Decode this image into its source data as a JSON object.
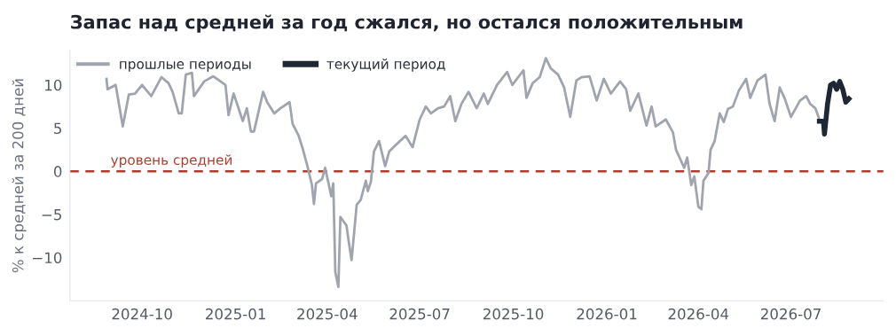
{
  "chart_data": {
    "type": "line",
    "title": "Запас над средней за год сжался, но остался положительным",
    "ylabel": "% к средней за 200 дней",
    "xlim": [
      "2024-07-22",
      "2026-09-30"
    ],
    "ylim": [
      -15,
      14
    ],
    "xticks": [
      "2024-10",
      "2025-01",
      "2025-04",
      "2025-07",
      "2025-10",
      "2026-01",
      "2026-04",
      "2026-07"
    ],
    "yticks": [
      -10,
      -5,
      0,
      5,
      10
    ],
    "grid": false,
    "legend": "top left",
    "ref_lines": [
      {
        "axis": "y",
        "value": 0,
        "label": "уровень средней",
        "color": "#b03a2e",
        "line_style": "dashed"
      }
    ],
    "series": [
      {
        "name": "прошлые периоды",
        "color": "#a0a4ae",
        "x": [
          "2024-08-27",
          "2024-08-28",
          "2024-09-05",
          "2024-09-12",
          "2024-09-18",
          "2024-09-24",
          "2024-10-01",
          "2024-10-10",
          "2024-10-20",
          "2024-10-27",
          "2024-10-31",
          "2024-11-06",
          "2024-11-09",
          "2024-11-13",
          "2024-11-19",
          "2024-11-21",
          "2024-12-01",
          "2024-12-10",
          "2024-12-16",
          "2024-12-22",
          "2024-12-25",
          "2024-12-30",
          "2025-01-08",
          "2025-01-12",
          "2025-01-16",
          "2025-01-19",
          "2025-01-28",
          "2025-02-01",
          "2025-02-08",
          "2025-02-14",
          "2025-02-23",
          "2025-02-26",
          "2025-03-04",
          "2025-03-08",
          "2025-03-13",
          "2025-03-17",
          "2025-03-19",
          "2025-03-21",
          "2025-03-27",
          "2025-03-30",
          "2025-04-02",
          "2025-04-05",
          "2025-04-07",
          "2025-04-09",
          "2025-04-12",
          "2025-04-14",
          "2025-04-20",
          "2025-04-22",
          "2025-04-25",
          "2025-04-30",
          "2025-05-04",
          "2025-05-09",
          "2025-05-11",
          "2025-05-14",
          "2025-05-17",
          "2025-05-22",
          "2025-05-28",
          "2025-06-01",
          "2025-06-08",
          "2025-06-17",
          "2025-06-24",
          "2025-07-01",
          "2025-07-07",
          "2025-07-12",
          "2025-07-19",
          "2025-07-25",
          "2025-07-31",
          "2025-08-05",
          "2025-08-11",
          "2025-08-18",
          "2025-08-26",
          "2025-09-02",
          "2025-09-06",
          "2025-09-15",
          "2025-09-25",
          "2025-09-30",
          "2025-10-11",
          "2025-10-14",
          "2025-10-20",
          "2025-10-27",
          "2025-11-02",
          "2025-11-07",
          "2025-11-14",
          "2025-11-20",
          "2025-11-26",
          "2025-12-02",
          "2025-12-07",
          "2025-12-15",
          "2025-12-22",
          "2025-12-29",
          "2026-01-05",
          "2026-01-14",
          "2026-01-20",
          "2026-01-24",
          "2026-02-01",
          "2026-02-09",
          "2026-02-14",
          "2026-02-18",
          "2026-02-28",
          "2026-03-07",
          "2026-03-10",
          "2026-03-18",
          "2026-03-21",
          "2026-03-25",
          "2026-03-28",
          "2026-04-01",
          "2026-04-04",
          "2026-04-06",
          "2026-04-11",
          "2026-04-13",
          "2026-04-17",
          "2026-04-22",
          "2026-04-26",
          "2026-04-30",
          "2026-05-05",
          "2026-05-11",
          "2026-05-18",
          "2026-05-22",
          "2026-05-29",
          "2026-06-06",
          "2026-06-10",
          "2026-06-15",
          "2026-06-20",
          "2026-06-25",
          "2026-07-01",
          "2026-07-10",
          "2026-07-16",
          "2026-07-20",
          "2026-07-25",
          "2026-07-29"
        ],
        "values": [
          10.7,
          9.5,
          10.0,
          5.2,
          8.9,
          9.0,
          10.0,
          8.7,
          10.9,
          10.2,
          9.2,
          6.7,
          6.7,
          11.2,
          11.4,
          8.7,
          10.4,
          11.0,
          10.5,
          10.0,
          6.5,
          9.0,
          5.8,
          7.3,
          4.6,
          4.6,
          9.2,
          8.0,
          6.7,
          7.3,
          8.0,
          5.5,
          4.1,
          2.6,
          0.4,
          -1.6,
          -3.8,
          -1.4,
          -0.9,
          0.4,
          -1.2,
          -2.9,
          -1.4,
          -11.7,
          -13.4,
          -5.3,
          -6.3,
          -8.0,
          -10.3,
          -3.9,
          -3.3,
          -1.1,
          -2.3,
          -1.2,
          2.3,
          3.5,
          0.6,
          2.3,
          3.1,
          4.1,
          2.8,
          6.0,
          7.5,
          6.7,
          7.3,
          7.5,
          8.7,
          5.8,
          7.8,
          9.2,
          7.3,
          9.0,
          7.8,
          10.0,
          11.5,
          10.0,
          11.7,
          8.5,
          10.2,
          10.9,
          13.1,
          11.9,
          11.2,
          9.7,
          6.3,
          10.5,
          10.9,
          11.0,
          8.2,
          10.7,
          9.0,
          10.4,
          9.5,
          7.0,
          9.0,
          5.3,
          7.5,
          5.2,
          6.0,
          4.5,
          2.5,
          0.4,
          1.6,
          -1.6,
          -0.6,
          -4.1,
          -4.4,
          -1.1,
          -0.2,
          2.5,
          3.5,
          6.7,
          5.7,
          7.2,
          7.5,
          9.4,
          10.7,
          8.5,
          10.5,
          11.2,
          7.8,
          5.8,
          9.7,
          8.4,
          6.3,
          8.2,
          8.7,
          7.8,
          7.3,
          6.0
        ]
      },
      {
        "name": "текущий период",
        "color": "#1e2733",
        "x": [
          "2026-07-29",
          "2026-08-02",
          "2026-08-03",
          "2026-08-06",
          "2026-08-09",
          "2026-08-12",
          "2026-08-15",
          "2026-08-18",
          "2026-08-21",
          "2026-08-24",
          "2026-08-27"
        ],
        "values": [
          5.8,
          5.8,
          4.3,
          7.8,
          10.0,
          10.2,
          9.5,
          10.4,
          9.5,
          8.0,
          8.4
        ]
      }
    ]
  }
}
